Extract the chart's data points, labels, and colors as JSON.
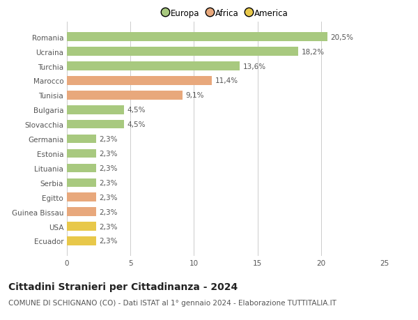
{
  "categories": [
    "Romania",
    "Ucraina",
    "Turchia",
    "Marocco",
    "Tunisia",
    "Bulgaria",
    "Slovacchia",
    "Germania",
    "Estonia",
    "Lituania",
    "Serbia",
    "Egitto",
    "Guinea Bissau",
    "USA",
    "Ecuador"
  ],
  "values": [
    20.5,
    18.2,
    13.6,
    11.4,
    9.1,
    4.5,
    4.5,
    2.3,
    2.3,
    2.3,
    2.3,
    2.3,
    2.3,
    2.3,
    2.3
  ],
  "colors": [
    "#a8c97f",
    "#a8c97f",
    "#a8c97f",
    "#e8a87c",
    "#e8a87c",
    "#a8c97f",
    "#a8c97f",
    "#a8c97f",
    "#a8c97f",
    "#a8c97f",
    "#a8c97f",
    "#e8a87c",
    "#e8a87c",
    "#e8c84a",
    "#e8c84a"
  ],
  "labels": [
    "20,5%",
    "18,2%",
    "13,6%",
    "11,4%",
    "9,1%",
    "4,5%",
    "4,5%",
    "2,3%",
    "2,3%",
    "2,3%",
    "2,3%",
    "2,3%",
    "2,3%",
    "2,3%",
    "2,3%"
  ],
  "legend_labels": [
    "Europa",
    "Africa",
    "America"
  ],
  "legend_colors": [
    "#a8c97f",
    "#e8a87c",
    "#e8c84a"
  ],
  "title": "Cittadini Stranieri per Cittadinanza - 2024",
  "subtitle": "COMUNE DI SCHIGNANO (CO) - Dati ISTAT al 1° gennaio 2024 - Elaborazione TUTTITALIA.IT",
  "xlim": [
    0,
    25
  ],
  "xticks": [
    0,
    5,
    10,
    15,
    20,
    25
  ],
  "background_color": "#ffffff",
  "grid_color": "#cccccc",
  "bar_height": 0.6,
  "title_fontsize": 10,
  "subtitle_fontsize": 7.5,
  "label_fontsize": 7.5,
  "tick_fontsize": 7.5,
  "legend_fontsize": 8.5
}
